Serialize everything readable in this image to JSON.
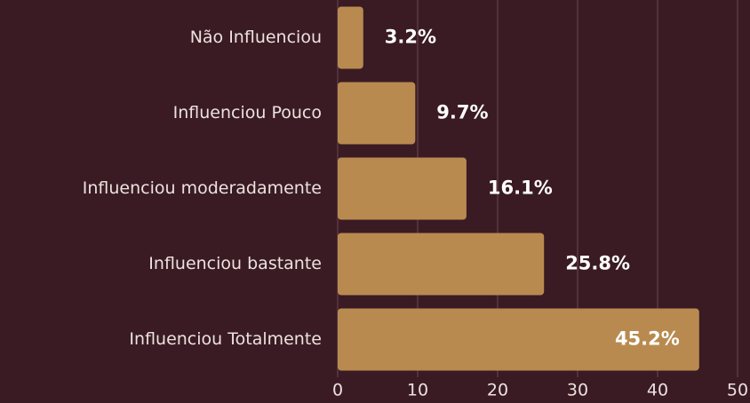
{
  "chart_data": {
    "type": "bar",
    "orientation": "horizontal",
    "categories": [
      "Não Influenciou",
      "Influenciou Pouco",
      "Influenciou moderadamente",
      "Influenciou bastante",
      "Influenciou Totalmente"
    ],
    "values": [
      3.2,
      9.7,
      16.1,
      25.8,
      45.2
    ],
    "value_labels": [
      "3.2%",
      "9.7%",
      "16.1%",
      "25.8%",
      "45.2%"
    ],
    "color": "#b98a50",
    "xlim": [
      0,
      50
    ],
    "xticks": [
      0,
      10,
      20,
      30,
      40,
      50
    ],
    "grid": true
  }
}
